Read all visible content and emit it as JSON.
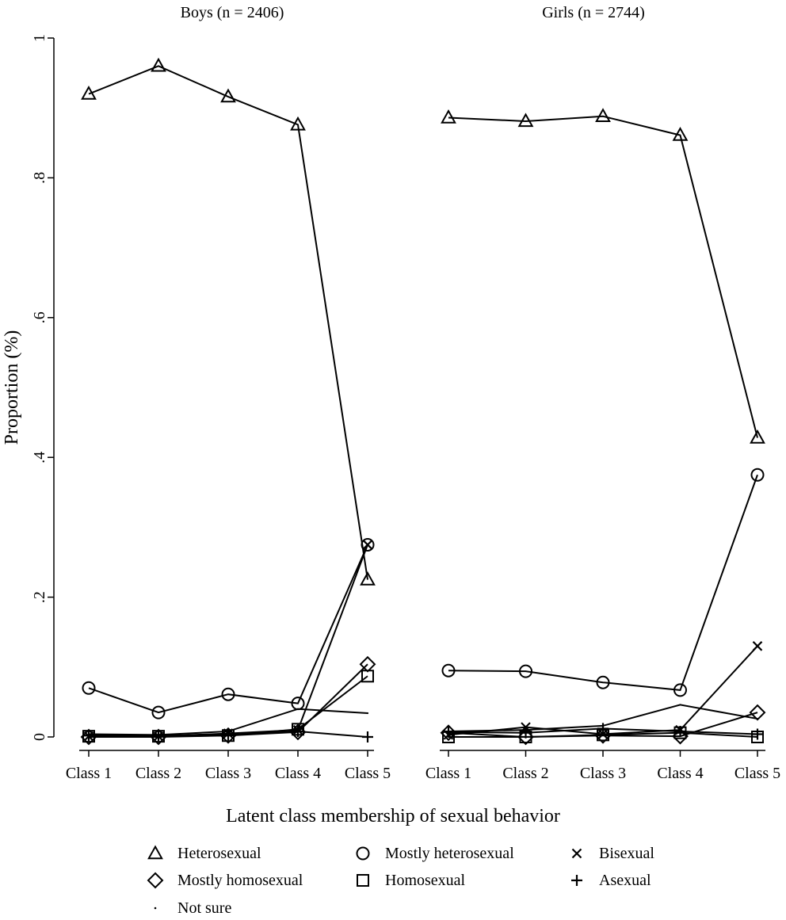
{
  "chart_data": {
    "type": "line",
    "ylabel": "Proportion (%)",
    "xlabel": "Latent class membership of sexual behavior",
    "ylim": [
      0,
      1
    ],
    "yticks": [
      0,
      0.2,
      0.4,
      0.6,
      0.8,
      1
    ],
    "ytick_labels": [
      "0",
      ".2",
      ".4",
      ".6",
      ".8",
      "1"
    ],
    "categories": [
      "Class 1",
      "Class 2",
      "Class 3",
      "Class 4",
      "Class 5"
    ],
    "legend_placement": "bottom",
    "panels": [
      {
        "title": "Boys (n = 2406)",
        "series": [
          {
            "name": "Heterosexual",
            "marker": "triangle",
            "values": [
              0.92,
              0.96,
              0.916,
              0.876,
              0.225
            ]
          },
          {
            "name": "Mostly heterosexual",
            "marker": "circle",
            "values": [
              0.07,
              0.035,
              0.061,
              0.048,
              0.275
            ]
          },
          {
            "name": "Bisexual",
            "marker": "x",
            "values": [
              0.001,
              0.001,
              0.005,
              0.01,
              0.275
            ]
          },
          {
            "name": "Mostly homosexual",
            "marker": "diamond",
            "values": [
              0.0,
              0.0,
              0.002,
              0.007,
              0.104
            ]
          },
          {
            "name": "Homosexual",
            "marker": "square",
            "values": [
              0.001,
              0.001,
              0.002,
              0.011,
              0.087
            ]
          },
          {
            "name": "Asexual",
            "marker": "plus",
            "values": [
              0.002,
              0.002,
              0.003,
              0.008,
              0.0
            ]
          },
          {
            "name": "Not sure",
            "marker": "dot",
            "values": [
              0.004,
              0.003,
              0.008,
              0.04,
              0.034
            ]
          }
        ]
      },
      {
        "title": "Girls (n = 2744)",
        "series": [
          {
            "name": "Heterosexual",
            "marker": "triangle",
            "values": [
              0.886,
              0.881,
              0.888,
              0.861,
              0.428
            ]
          },
          {
            "name": "Mostly heterosexual",
            "marker": "circle",
            "values": [
              0.095,
              0.094,
              0.078,
              0.067,
              0.375
            ]
          },
          {
            "name": "Bisexual",
            "marker": "x",
            "values": [
              0.003,
              0.014,
              0.004,
              0.01,
              0.13
            ]
          },
          {
            "name": "Mostly homosexual",
            "marker": "diamond",
            "values": [
              0.006,
              0.0,
              0.002,
              0.001,
              0.035
            ]
          },
          {
            "name": "Homosexual",
            "marker": "square",
            "values": [
              0.0,
              0.0,
              0.003,
              0.006,
              0.0
            ]
          },
          {
            "name": "Asexual",
            "marker": "plus",
            "values": [
              0.007,
              0.006,
              0.012,
              0.008,
              0.004
            ]
          },
          {
            "name": "Not sure",
            "marker": "dot",
            "values": [
              0.008,
              0.01,
              0.016,
              0.046,
              0.026
            ]
          }
        ]
      }
    ]
  },
  "legend": [
    {
      "label": "Heterosexual",
      "marker": "triangle"
    },
    {
      "label": "Mostly heterosexual",
      "marker": "circle"
    },
    {
      "label": "Bisexual",
      "marker": "x"
    },
    {
      "label": "Mostly homosexual",
      "marker": "diamond"
    },
    {
      "label": "Homosexual",
      "marker": "square"
    },
    {
      "label": "Asexual",
      "marker": "plus"
    },
    {
      "label": "Not sure",
      "marker": "dot"
    }
  ]
}
